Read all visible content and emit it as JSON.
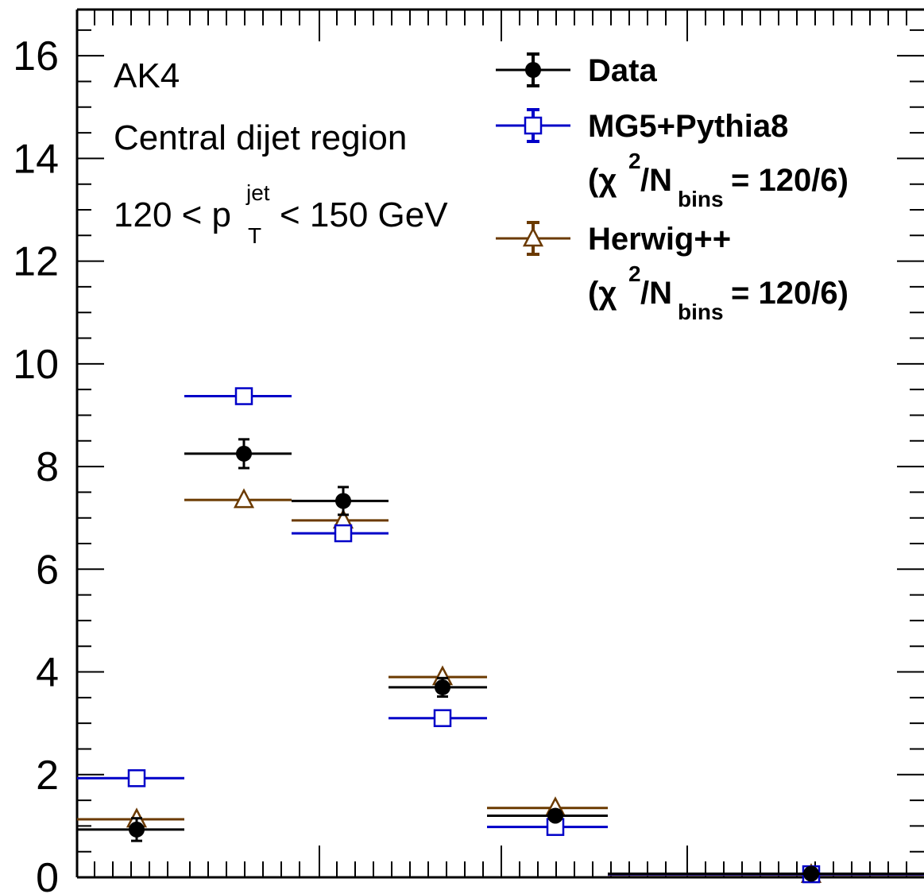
{
  "chart_data": {
    "type": "scatter",
    "ylim": [
      0,
      16.9
    ],
    "y_ticks": [
      "0",
      "2",
      "4",
      "6",
      "8",
      "10",
      "12",
      "14",
      "16"
    ],
    "annotations": {
      "line1": "AK4",
      "line2": "Central dijet region",
      "line3_pre": "120 < p",
      "line3_sup": "jet",
      "line3_sub": "T",
      "line3_post": " < 150 GeV"
    },
    "legend": [
      {
        "label": "Data"
      },
      {
        "label": "MG5+Pythia8",
        "chi_pre": "(χ",
        "chi_sup": "2",
        "chi_mid": "/N",
        "chi_sub": "bins",
        "chi_post": " = 120/6)"
      },
      {
        "label": "Herwig++",
        "chi_pre": "(χ",
        "chi_sup": "2",
        "chi_mid": "/N",
        "chi_sub": "bins",
        "chi_post": " = 120/6)"
      }
    ],
    "series": [
      {
        "name": "Data",
        "color": "#000000",
        "marker": "filled-circle",
        "points": [
          {
            "y": 0.93,
            "err": 0.22
          },
          {
            "y": 8.25,
            "err": 0.28
          },
          {
            "y": 7.33,
            "err": 0.27
          },
          {
            "y": 3.7,
            "err": 0.18
          },
          {
            "y": 1.2,
            "err": 0.09
          },
          {
            "y": 0.07,
            "err": 0.02
          }
        ]
      },
      {
        "name": "MG5+Pythia8",
        "color": "#0000c8",
        "marker": "open-square",
        "points": [
          {
            "y": 1.93
          },
          {
            "y": 9.37
          },
          {
            "y": 6.7
          },
          {
            "y": 3.1
          },
          {
            "y": 0.98
          },
          {
            "y": 0.06
          }
        ]
      },
      {
        "name": "Herwig++",
        "color": "#6b3a00",
        "marker": "open-triangle",
        "points": [
          {
            "y": 1.13
          },
          {
            "y": 7.35
          },
          {
            "y": 6.95
          },
          {
            "y": 3.9
          },
          {
            "y": 1.35
          },
          {
            "y": 0.05
          }
        ]
      }
    ]
  }
}
